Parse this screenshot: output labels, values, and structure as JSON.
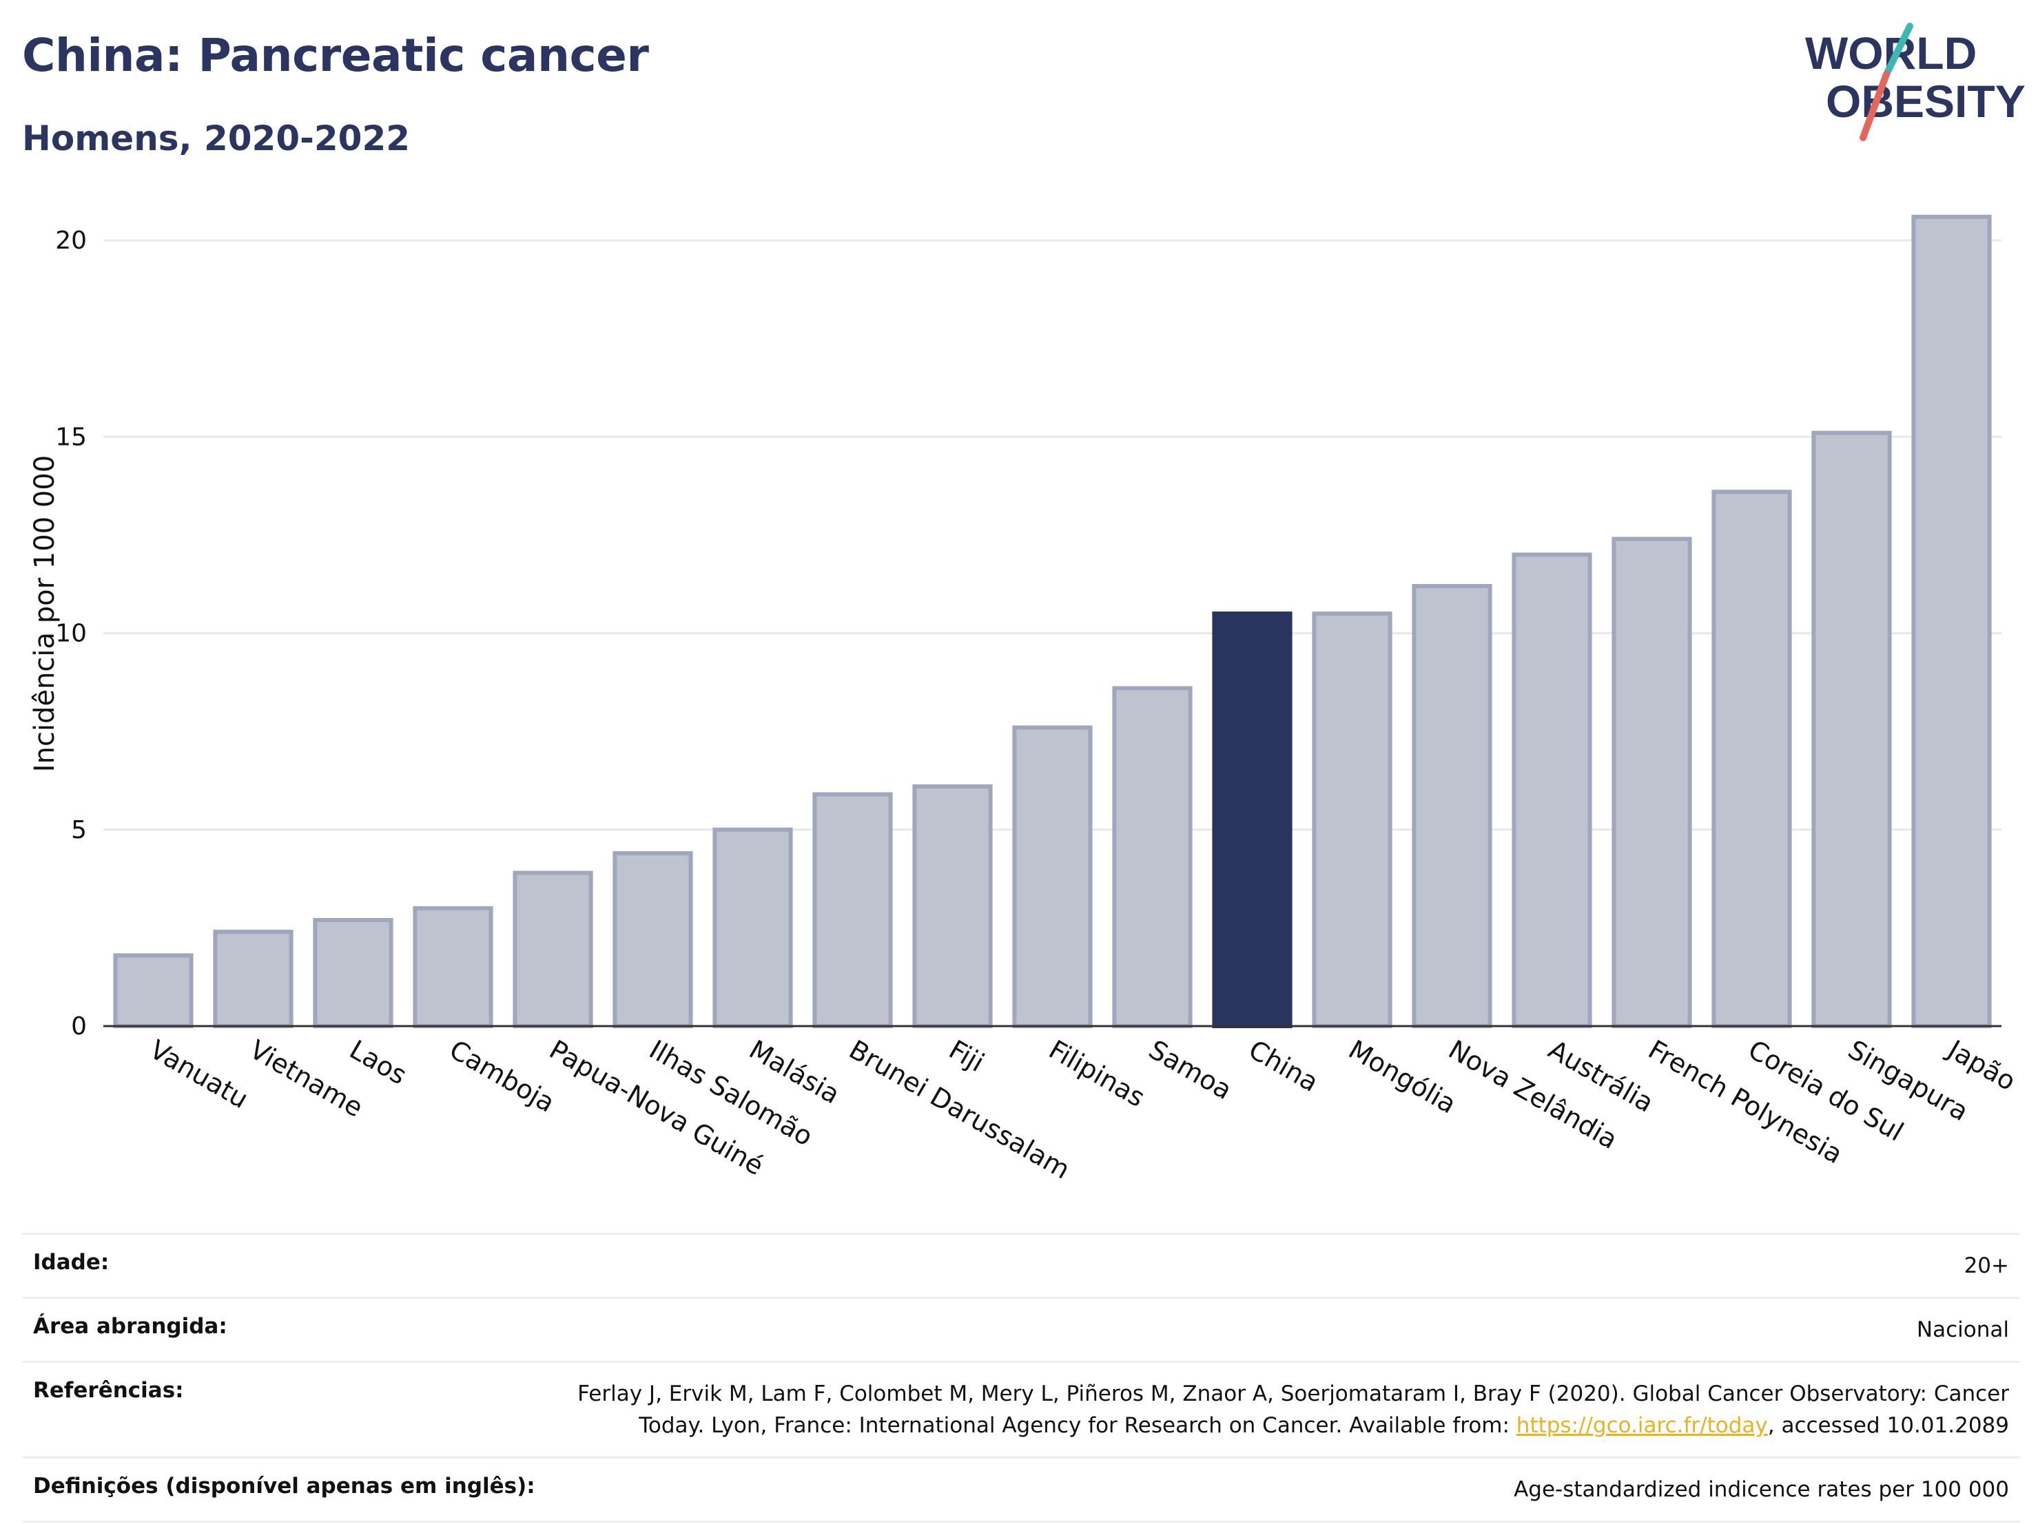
{
  "header": {
    "title": "China: Pancreatic cancer",
    "subtitle": "Homens, 2020-2022"
  },
  "logo": {
    "line1": "WORLD",
    "line2": "OBESITY",
    "colors": {
      "text": "#2b3561",
      "slash_red": "#e5665a",
      "slash_teal": "#3bb8b4"
    }
  },
  "colors": {
    "bar_default": "#bfc3d0",
    "bar_stroke": "#a0a6bb",
    "bar_highlight": "#29345f",
    "grid": "#e6e8ee",
    "axis": "#333333"
  },
  "chart_data": {
    "type": "bar",
    "ylabel": "Incidência por 100 000",
    "ylim": [
      0,
      21
    ],
    "yticks": [
      0,
      5,
      10,
      15,
      20
    ],
    "grid": true,
    "highlight": "China",
    "categories": [
      "Vanuatu",
      "Vietname",
      "Laos",
      "Camboja",
      "Papua-Nova Guiné",
      "Ilhas Salomão",
      "Malásia",
      "Brunei Darussalam",
      "Fiji",
      "Filipinas",
      "Samoa",
      "China",
      "Mongólia",
      "Nova Zelândia",
      "Austrália",
      "French Polynesia",
      "Coreia do Sul",
      "Singapura",
      "Japão"
    ],
    "values": [
      1.8,
      2.4,
      2.7,
      3.0,
      3.9,
      4.4,
      5.0,
      5.9,
      6.1,
      7.6,
      8.6,
      10.5,
      10.5,
      11.2,
      12.0,
      12.4,
      13.6,
      15.1,
      20.6
    ]
  },
  "info": {
    "age_label": "Idade:",
    "age_value": "20+",
    "area_label": "Área abrangida:",
    "area_value": "Nacional",
    "refs_label": "Referências:",
    "refs_text_1": "Ferlay J, Ervik M, Lam F, Colombet M, Mery L, Piñeros M, Znaor A, Soerjomataram I, Bray F (2020). Global Cancer Observatory: Cancer Today. Lyon, France: International Agency for Research on Cancer. Available from: ",
    "refs_link": "https://gco.iarc.fr/today",
    "refs_text_2": ", accessed 10.01.2089",
    "defs_label": "Definições (disponível apenas em inglês):",
    "defs_value": "Age-standardized indicence rates per 100 000"
  }
}
